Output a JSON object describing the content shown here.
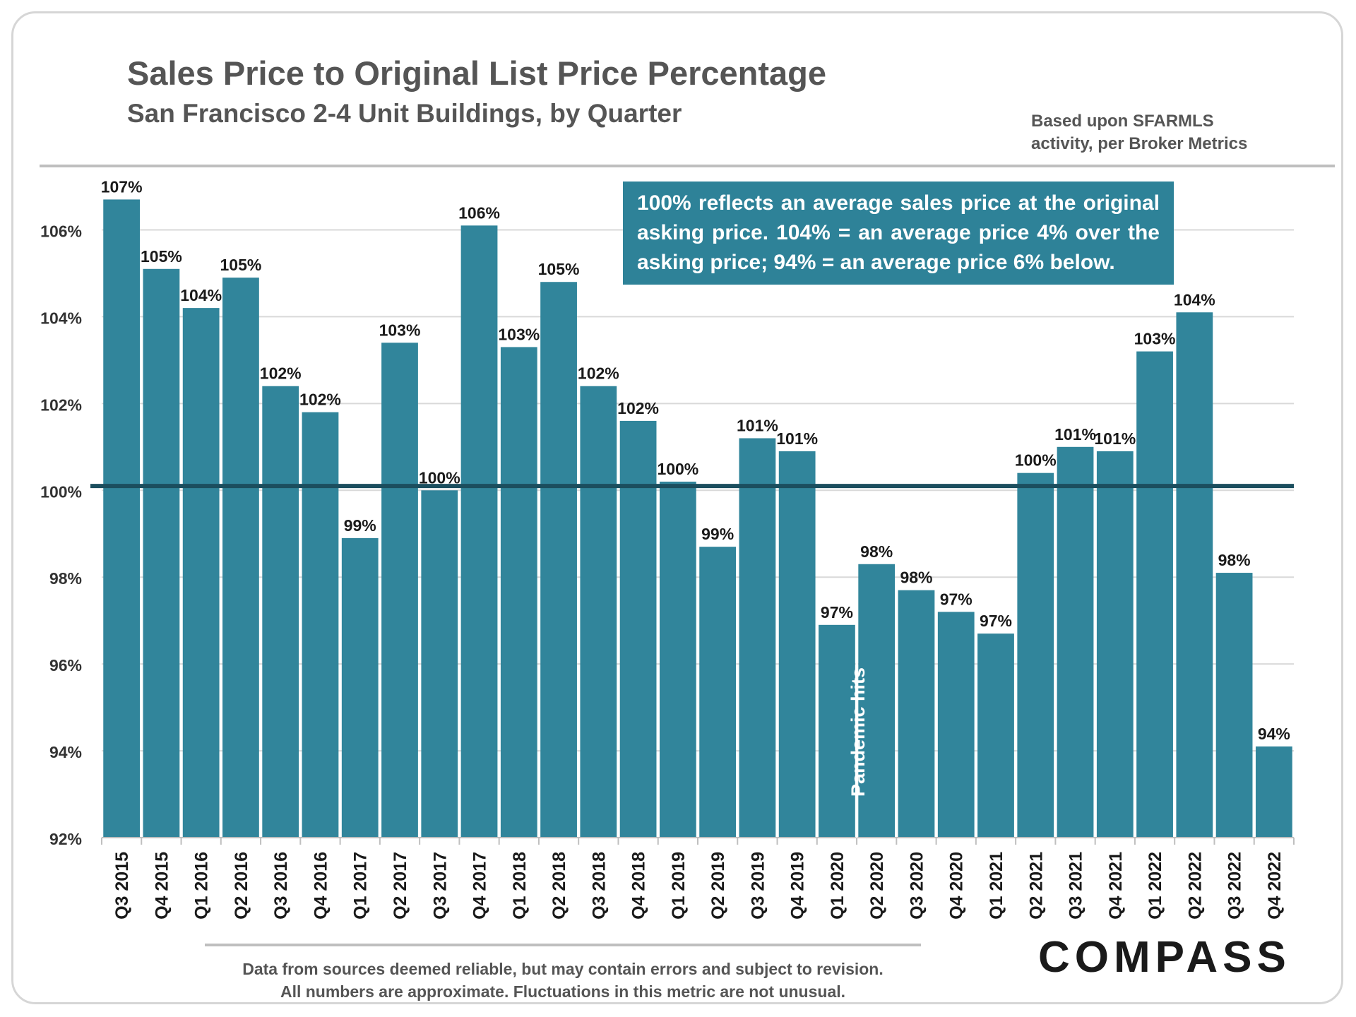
{
  "title": "Sales Price to Original List Price Percentage",
  "subtitle": "San Francisco 2-4 Unit Buildings, by Quarter",
  "source_note": [
    "Based upon SFARMLS",
    "activity, per Broker Metrics"
  ],
  "callout": "100% reflects an average sales price at the original asking price. 104% = an average price 4% over the asking price; 94% = an average price 6% below.",
  "footnote": [
    "Data from sources deemed reliable, but may contain errors and subject to revision.",
    "All numbers are approximate. Fluctuations in this metric are not unusual."
  ],
  "logo": "COMPASS",
  "annotation": "Pandemic hits",
  "colors": {
    "bar": "#31859b",
    "reference_line": "#1b4e5e",
    "grid": "#d9d9d9",
    "text": "#555555"
  },
  "chart_data": {
    "type": "bar",
    "categories": [
      "Q3 2015",
      "Q4 2015",
      "Q1 2016",
      "Q2 2016",
      "Q3 2016",
      "Q4 2016",
      "Q1 2017",
      "Q2 2017",
      "Q3 2017",
      "Q4 2017",
      "Q1 2018",
      "Q2 2018",
      "Q3 2018",
      "Q4 2018",
      "Q1 2019",
      "Q2 2019",
      "Q3 2019",
      "Q4 2019",
      "Q1 2020",
      "Q2 2020",
      "Q3 2020",
      "Q4 2020",
      "Q1 2021",
      "Q2 2021",
      "Q3 2021",
      "Q4 2021",
      "Q1 2022",
      "Q2 2022",
      "Q3 2022",
      "Q4 2022"
    ],
    "values": [
      106.7,
      105.1,
      104.2,
      104.9,
      102.4,
      101.8,
      98.9,
      103.4,
      100.0,
      106.1,
      103.3,
      104.8,
      102.4,
      101.6,
      100.2,
      98.7,
      101.2,
      100.9,
      96.9,
      98.3,
      97.7,
      97.2,
      96.7,
      100.4,
      101.0,
      100.9,
      103.2,
      104.1,
      98.1,
      94.1
    ],
    "data_labels": [
      "107%",
      "105%",
      "104%",
      "105%",
      "102%",
      "102%",
      "99%",
      "103%",
      "100%",
      "106%",
      "103%",
      "105%",
      "102%",
      "102%",
      "100%",
      "99%",
      "101%",
      "101%",
      "97%",
      "98%",
      "98%",
      "97%",
      "97%",
      "100%",
      "101%",
      "101%",
      "103%",
      "104%",
      "98%",
      "94%"
    ],
    "ylim": [
      92,
      107
    ],
    "y_ticks": [
      92,
      94,
      96,
      98,
      100,
      102,
      104,
      106
    ],
    "y_tick_labels": [
      "92%",
      "94%",
      "96%",
      "98%",
      "100%",
      "102%",
      "104%",
      "106%"
    ],
    "reference_line": 100.1,
    "grid": true,
    "legend": "none"
  }
}
